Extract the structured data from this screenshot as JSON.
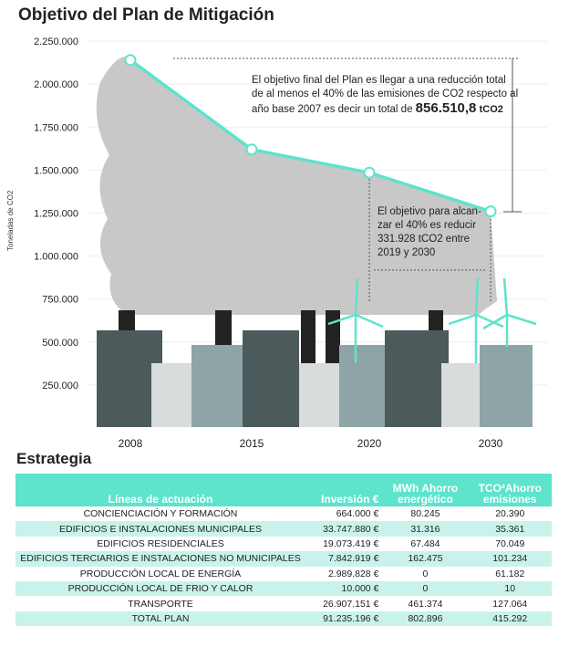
{
  "title": "Objetivo del Plan de Mitigación",
  "chart_data": {
    "type": "line",
    "title": "Objetivo del Plan de Mitigación",
    "ylabel": "Toneladas de CO2",
    "xlabel": "",
    "categories": [
      "2008",
      "2015",
      "2020",
      "2030"
    ],
    "values": [
      2140000,
      1620000,
      1485000,
      1260000
    ],
    "ylim": [
      0,
      2250000
    ],
    "yticks": [
      "2.250.000",
      "2.000.000",
      "1.750.000",
      "1.500.000",
      "1.250.000",
      "1.000.000",
      "750.000",
      "500.000",
      "250.000"
    ],
    "ytick_values": [
      2250000,
      2000000,
      1750000,
      1500000,
      1250000,
      1000000,
      750000,
      500000,
      250000
    ],
    "line_color": "#5ee3cc",
    "annotations": {
      "main_line1": "El objetivo final del Plan es llegar a una reducción total",
      "main_line2": "de al menos el 40% de las emisiones de CO2 respecto al",
      "main_line3": "año base 2007 es decir un total de",
      "main_value": "856.510,8",
      "main_unit": "tCO2",
      "second_line1": "El objetivo para alcan-",
      "second_line2": "zar el 40% es reducir",
      "second_line3": "331.928 tCO2 entre",
      "second_line4": "2019 y 2030"
    }
  },
  "strategy": {
    "title": "Estrategia",
    "headers": {
      "line": "Líneas de actuación",
      "inv": "Inversión €",
      "mwh1": "MWh Ahorro",
      "mwh2": "energético",
      "tco1": "TCO²Ahorro",
      "tco2": "emisiones"
    },
    "rows": [
      {
        "name": "CONCIENCIACIÓN Y FORMACIÓN",
        "inv": "664.000 €",
        "mwh": "80.245",
        "tco": "20.390"
      },
      {
        "name": "EDIFICIOS E INSTALACIONES MUNICIPALES",
        "inv": "33.747.880 €",
        "mwh": "31.316",
        "tco": "35.361"
      },
      {
        "name": "EDIFICIOS RESIDENCIALES",
        "inv": "19.073.419 €",
        "mwh": "67.484",
        "tco": "70.049"
      },
      {
        "name": "EDIFICIOS TERCIARIOS E INSTALACIONES NO MUNICIPALES",
        "inv": "7.842.919 €",
        "mwh": "162.475",
        "tco": "101.234"
      },
      {
        "name": "PRODUCCIÓN LOCAL DE ENERGÍA",
        "inv": "2.989.828 €",
        "mwh": "0",
        "tco": "61.182"
      },
      {
        "name": "PRODUCCIÓN LOCAL DE FRIO Y CALOR",
        "inv": "10.000 €",
        "mwh": "0",
        "tco": "10"
      },
      {
        "name": "TRANSPORTE",
        "inv": "26.907.151 €",
        "mwh": "461.374",
        "tco": "127.064"
      },
      {
        "name": "TOTAL PLAN",
        "inv": "91.235.196 €",
        "mwh": "802.896",
        "tco": "415.292"
      }
    ]
  }
}
